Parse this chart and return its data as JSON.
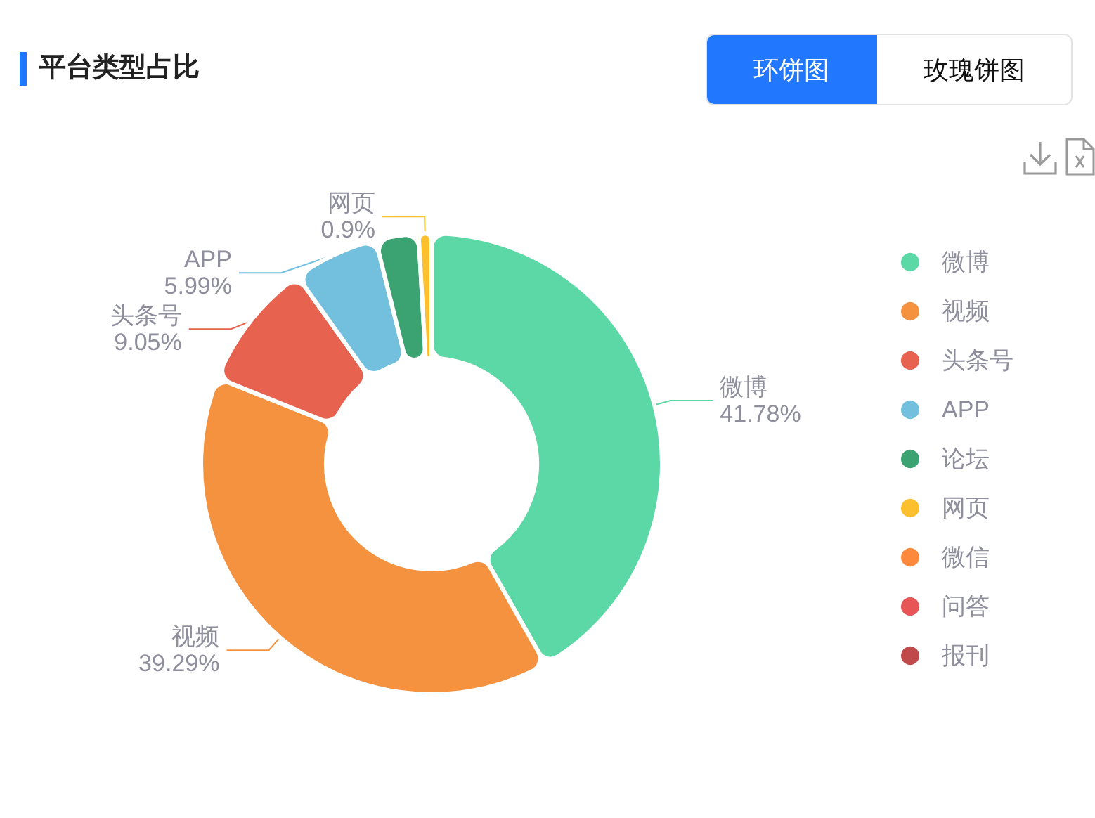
{
  "chart_data": {
    "type": "donut",
    "title": "平台类型占比",
    "categories": [
      "微博",
      "视频",
      "头条号",
      "APP",
      "论坛",
      "网页",
      "微信",
      "问答",
      "报刊"
    ],
    "values": [
      41.78,
      39.29,
      9.05,
      5.99,
      2.99,
      0.9,
      0,
      0,
      0
    ],
    "colors": [
      "#5cd8a6",
      "#f5923f",
      "#e8634f",
      "#72bfde",
      "#3ba272",
      "#fcc02f",
      "#fd8a3c",
      "#e85557",
      "#c0494a"
    ],
    "value_labels": [
      "41.78%",
      "39.29%",
      "9.05%",
      "5.99%",
      null,
      "0.9%",
      null,
      null,
      null
    ],
    "legend": "right",
    "annotations": [
      "环饼图",
      "玫瑰饼图"
    ]
  }
}
